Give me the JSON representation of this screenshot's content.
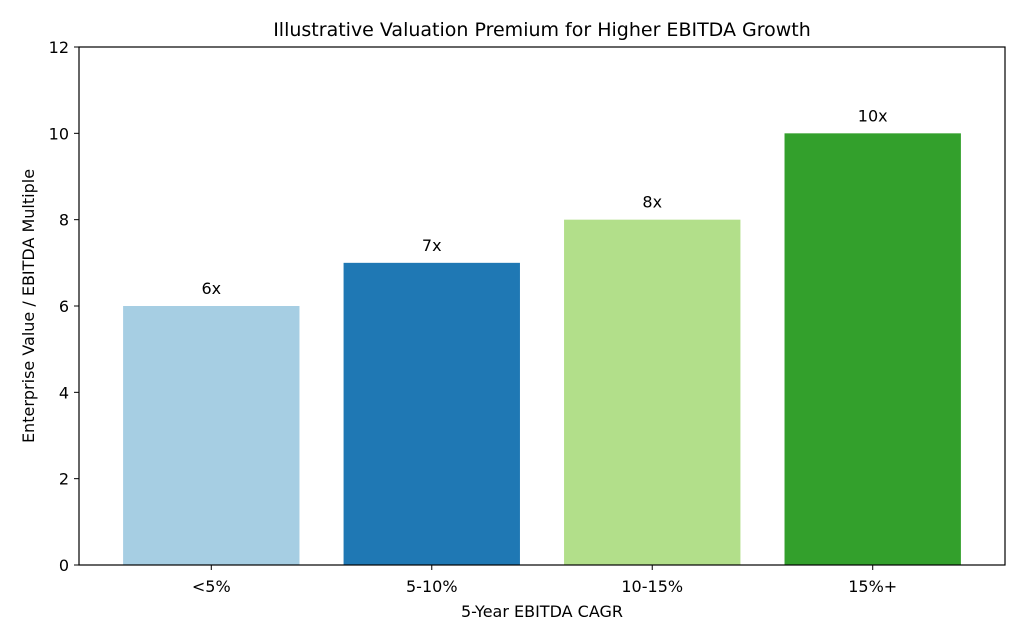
{
  "chart_data": {
    "type": "bar",
    "title": "Illustrative Valuation Premium for Higher EBITDA Growth",
    "xlabel": "5-Year EBITDA CAGR",
    "ylabel": "Enterprise Value / EBITDA Multiple",
    "categories": [
      "<5%",
      "5-10%",
      "10-15%",
      "15%+"
    ],
    "values": [
      6,
      7,
      8,
      10
    ],
    "data_labels": [
      "6x",
      "7x",
      "8x",
      "10x"
    ],
    "colors": [
      "#a6cee3",
      "#1f78b4",
      "#b2df8a",
      "#33a02c"
    ],
    "ylim": [
      0,
      12
    ],
    "yticks": [
      0,
      2,
      4,
      6,
      8,
      10,
      12
    ],
    "grid": false
  }
}
